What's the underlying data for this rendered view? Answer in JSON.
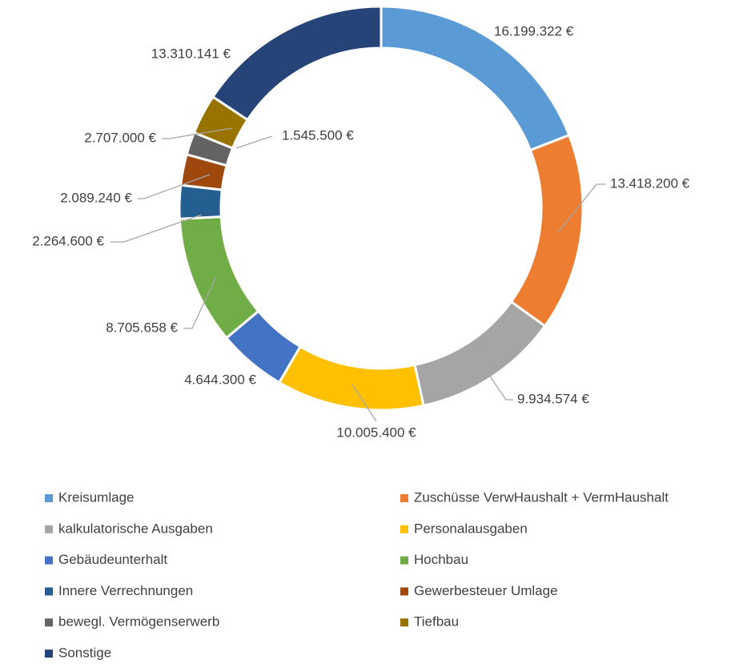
{
  "chart_data": {
    "type": "donut",
    "categories": [
      "Kreisumlage",
      "Zuschüsse VerwHaushalt + VermHaushalt",
      "kalkulatorische Ausgaben",
      "Personalausgaben",
      "Gebäudeunterhalt",
      "Hochbau",
      "Innere Verrechnungen",
      "Gewerbesteuer Umlage",
      "bewegl. Vermögenserwerb",
      "Tiefbau",
      "Sonstige"
    ],
    "values": [
      16199322,
      13418200,
      9934574,
      10005400,
      4644300,
      8705658,
      2264600,
      2089240,
      1545500,
      2707000,
      13310141
    ],
    "value_labels": [
      "16.199.322 €",
      "13.418.200 €",
      "9.934.574 €",
      "10.005.400 €",
      "4.644.300 €",
      "8.705.658 €",
      "2.264.600 €",
      "2.089.240 €",
      "1.545.500 €",
      "2.707.000 €",
      "13.310.141 €"
    ],
    "colors": [
      "#5b9bd5",
      "#ed7d31",
      "#a5a5a5",
      "#ffc000",
      "#4472c4",
      "#70ad47",
      "#255e91",
      "#9e480e",
      "#636363",
      "#997300",
      "#264478"
    ],
    "legend": "bottom"
  }
}
